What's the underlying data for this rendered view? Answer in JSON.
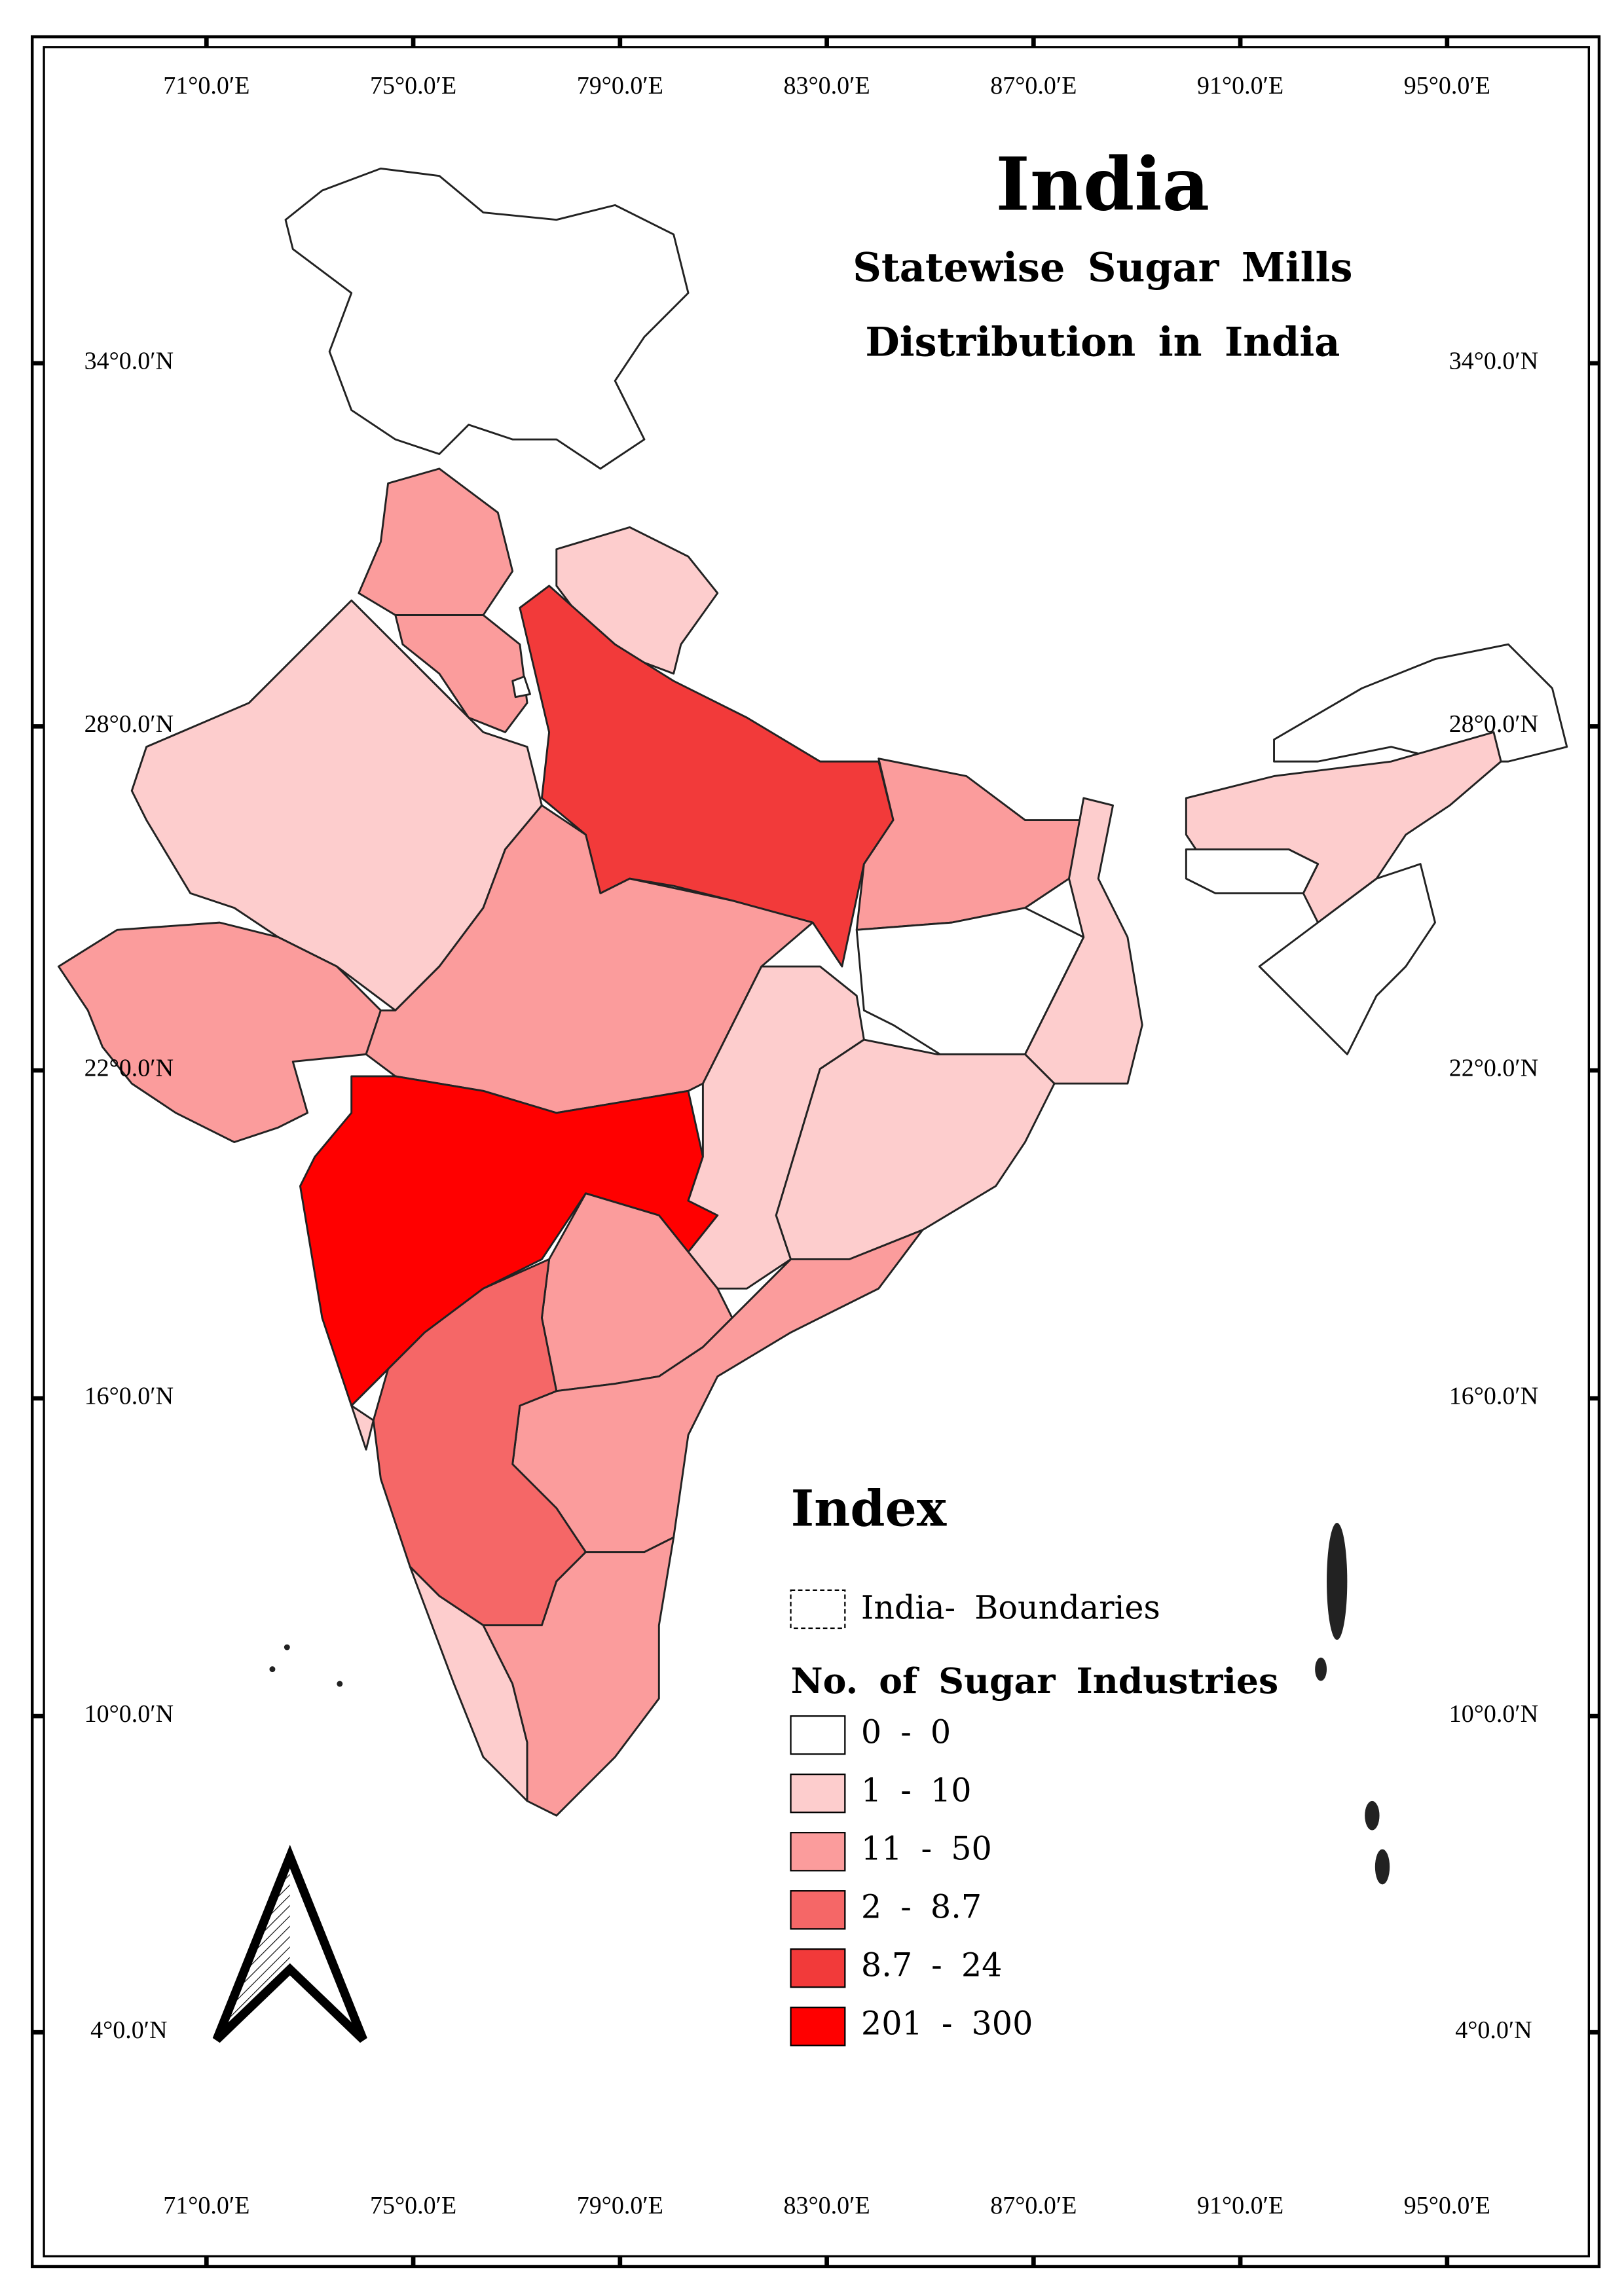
{
  "title": "India",
  "subtitle_lines": [
    "Statewise Sugar Mills",
    "Distribution in India"
  ],
  "longitude_labels": [
    "71°0.0′E",
    "75°0.0′E",
    "79°0.0′E",
    "83°0.0′E",
    "87°0.0′E",
    "91°0.0′E",
    "95°0.0′E"
  ],
  "latitude_labels": [
    "34°0.0′N",
    "28°0.0′N",
    "22°0.0′N",
    "16°0.0′N",
    "10°0.0′N",
    "4°0.0′N"
  ],
  "legend": {
    "title": "Index",
    "boundary_label": "India- Boundaries",
    "classes_title": "No. of Sugar Industries",
    "classes": [
      {
        "label": "0 - 0",
        "color": "#ffffff"
      },
      {
        "label": "1 - 10",
        "color": "#fdcdcd"
      },
      {
        "label": "11 - 50",
        "color": "#fb9c9c"
      },
      {
        "label": "2 - 8.7",
        "color": "#f56767"
      },
      {
        "label": "8.7 - 24",
        "color": "#f23a3a"
      },
      {
        "label": "201 - 300",
        "color": "#ff0000"
      }
    ]
  }
}
